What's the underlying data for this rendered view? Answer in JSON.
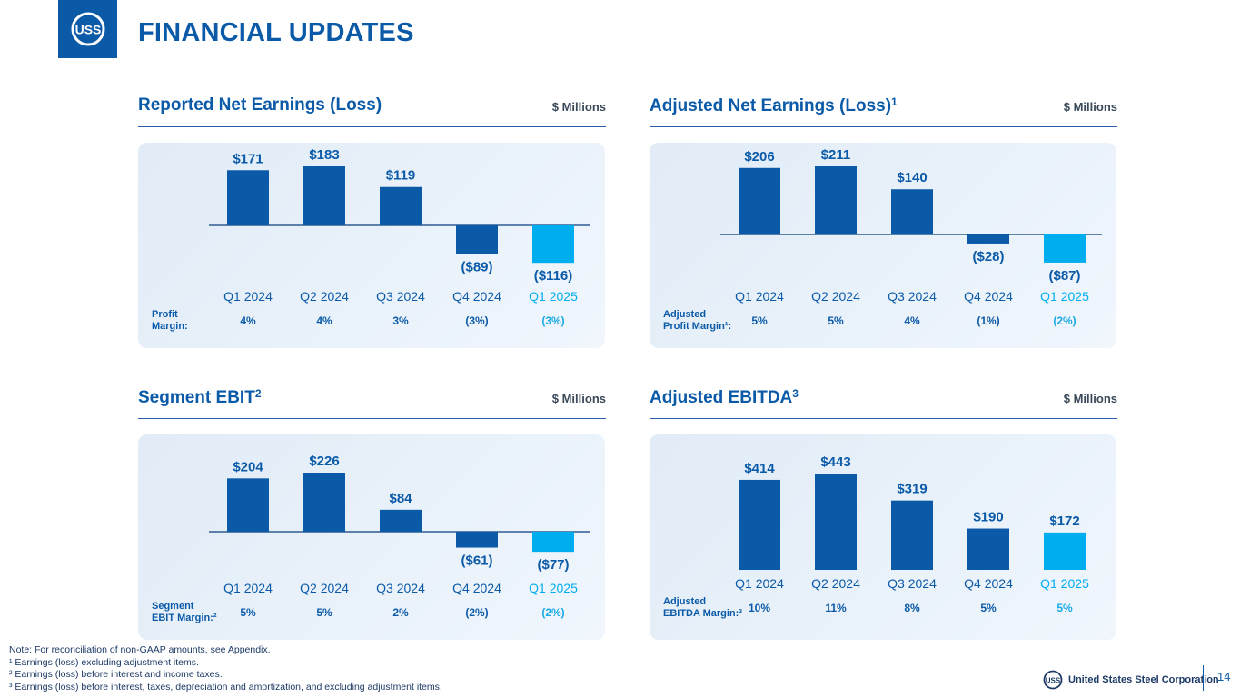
{
  "header": {
    "title": "FINANCIAL UPDATES",
    "logo_text": "USS"
  },
  "colors": {
    "primary": "#0b5aa8",
    "highlight": "#00aeef",
    "accent_text": "#19a8e6"
  },
  "chart_data": [
    {
      "type": "bar",
      "title": "Reported Net Earnings (Loss)",
      "title_sup": "",
      "unit": "$ Millions",
      "categories": [
        "Q1 2024",
        "Q2 2024",
        "Q3 2024",
        "Q4 2024",
        "Q1 2025"
      ],
      "values": [
        171,
        183,
        119,
        -89,
        -116
      ],
      "value_labels": [
        "$171",
        "$183",
        "$119",
        "($89)",
        "($116)"
      ],
      "highlight_index": 4,
      "margin_label": [
        "Profit",
        "Margin:"
      ],
      "margins": [
        "4%",
        "4%",
        "3%",
        "(3%)",
        "(3%)"
      ]
    },
    {
      "type": "bar",
      "title": "Adjusted Net Earnings (Loss)",
      "title_sup": "1",
      "unit": "$ Millions",
      "categories": [
        "Q1 2024",
        "Q2 2024",
        "Q3 2024",
        "Q4 2024",
        "Q1 2025"
      ],
      "values": [
        206,
        211,
        140,
        -28,
        -87
      ],
      "value_labels": [
        "$206",
        "$211",
        "$140",
        "($28)",
        "($87)"
      ],
      "highlight_index": 4,
      "margin_label": [
        "Adjusted",
        "Profit Margin¹:"
      ],
      "margins": [
        "5%",
        "5%",
        "4%",
        "(1%)",
        "(2%)"
      ]
    },
    {
      "type": "bar",
      "title": "Segment EBIT",
      "title_sup": "2",
      "unit": "$ Millions",
      "categories": [
        "Q1 2024",
        "Q2 2024",
        "Q3 2024",
        "Q4 2024",
        "Q1 2025"
      ],
      "values": [
        204,
        226,
        84,
        -61,
        -77
      ],
      "value_labels": [
        "$204",
        "$226",
        "$84",
        "($61)",
        "($77)"
      ],
      "highlight_index": 4,
      "margin_label": [
        "Segment",
        "EBIT Margin:²"
      ],
      "margins": [
        "5%",
        "5%",
        "2%",
        "(2%)",
        "(2%)"
      ]
    },
    {
      "type": "bar",
      "title": "Adjusted EBITDA",
      "title_sup": "3",
      "unit": "$ Millions",
      "categories": [
        "Q1 2024",
        "Q2 2024",
        "Q3 2024",
        "Q4 2024",
        "Q1 2025"
      ],
      "values": [
        414,
        443,
        319,
        190,
        172
      ],
      "value_labels": [
        "$414",
        "$443",
        "$319",
        "$190",
        "$172"
      ],
      "highlight_index": 4,
      "margin_label": [
        "Adjusted",
        "EBITDA Margin:³"
      ],
      "margins": [
        "10%",
        "11%",
        "8%",
        "5%",
        "5%"
      ]
    }
  ],
  "notes": [
    "Note: For reconciliation of non-GAAP amounts, see Appendix.",
    "¹ Earnings (loss) excluding adjustment items.",
    "² Earnings (loss) before interest and income taxes.",
    "³ Earnings (loss) before interest, taxes, depreciation and amortization, and excluding adjustment items."
  ],
  "footer": {
    "corporation": "United States Steel Corporation",
    "page_number": "14"
  }
}
